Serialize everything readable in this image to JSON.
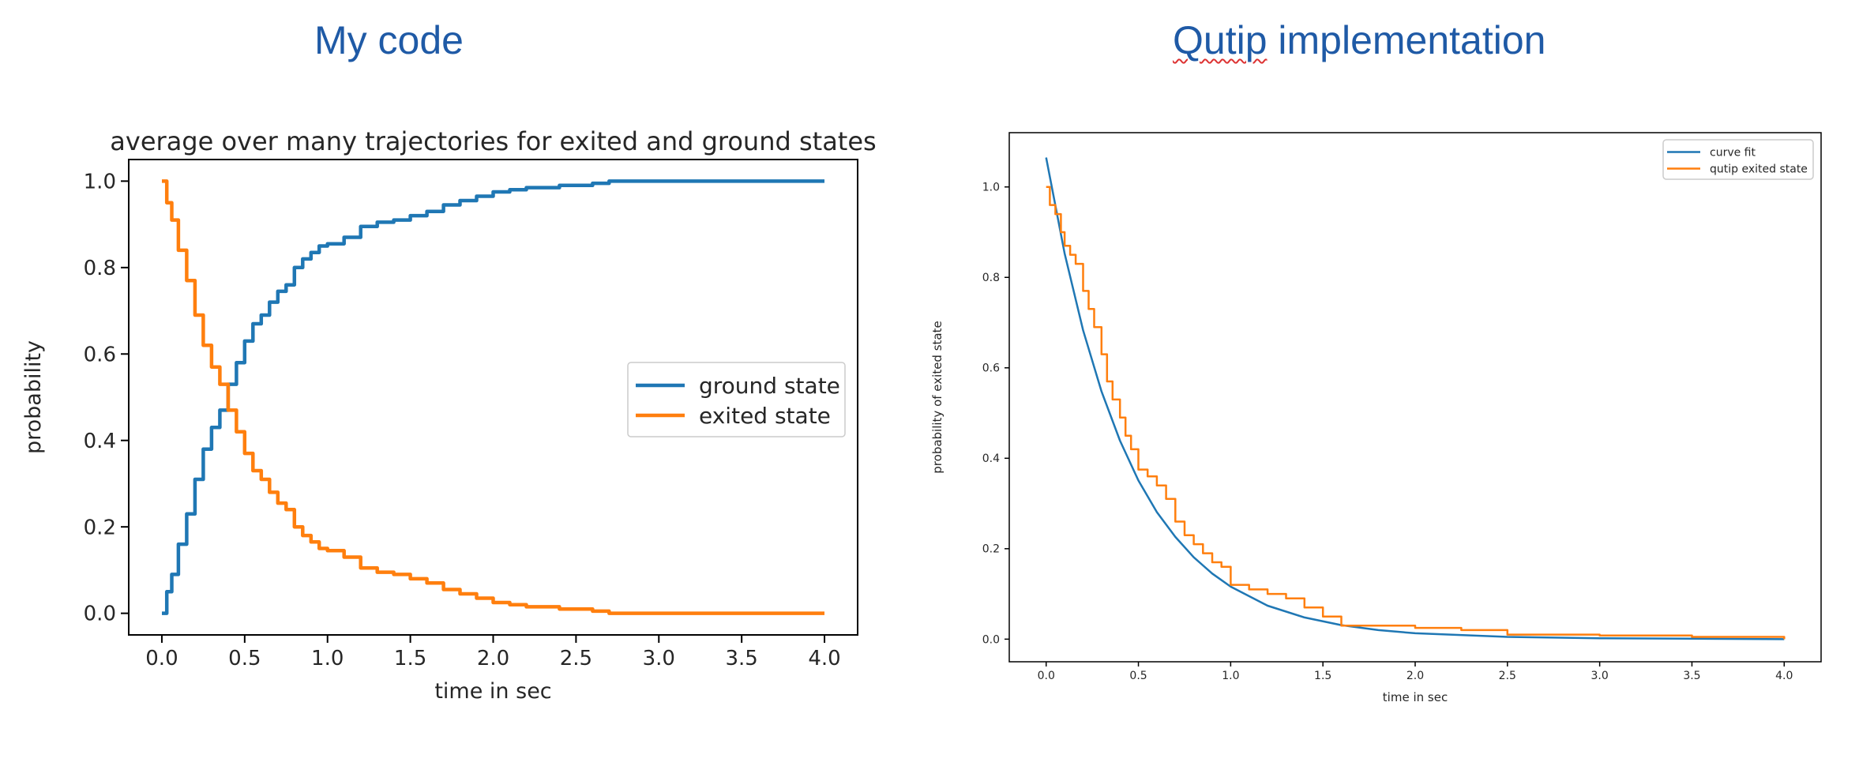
{
  "headings": {
    "left": "My code",
    "right_word1": "Qutip",
    "right_rest": " implementation"
  },
  "colors": {
    "heading": "#1f5aa6",
    "blue": "#1f77b4",
    "orange": "#ff7f0e"
  },
  "chart_data": [
    {
      "type": "line",
      "title": "average over many trajectories for exited and ground states",
      "xlabel": "time in sec",
      "ylabel": "probability",
      "xlim": [
        -0.2,
        4.2
      ],
      "ylim": [
        -0.05,
        1.05
      ],
      "xticks": [
        "0.0",
        "0.5",
        "1.0",
        "1.5",
        "2.0",
        "2.5",
        "3.0",
        "3.5",
        "4.0"
      ],
      "yticks": [
        "0.0",
        "0.2",
        "0.4",
        "0.6",
        "0.8",
        "1.0"
      ],
      "legend_position": "center-right",
      "grid": false,
      "series": [
        {
          "name": "ground state",
          "color": "#1f77b4",
          "step": true,
          "x": [
            0.0,
            0.03,
            0.06,
            0.1,
            0.15,
            0.2,
            0.25,
            0.3,
            0.35,
            0.4,
            0.45,
            0.5,
            0.55,
            0.6,
            0.65,
            0.7,
            0.75,
            0.8,
            0.85,
            0.9,
            0.95,
            1.0,
            1.1,
            1.2,
            1.3,
            1.4,
            1.5,
            1.6,
            1.7,
            1.8,
            1.9,
            2.0,
            2.1,
            2.2,
            2.4,
            2.6,
            2.7,
            3.0,
            3.5,
            4.0
          ],
          "y": [
            0.0,
            0.05,
            0.09,
            0.16,
            0.23,
            0.31,
            0.38,
            0.43,
            0.47,
            0.53,
            0.58,
            0.63,
            0.67,
            0.69,
            0.72,
            0.745,
            0.76,
            0.8,
            0.82,
            0.835,
            0.85,
            0.855,
            0.87,
            0.895,
            0.905,
            0.91,
            0.92,
            0.93,
            0.945,
            0.955,
            0.965,
            0.975,
            0.98,
            0.985,
            0.99,
            0.995,
            1.0,
            1.0,
            1.0,
            1.0
          ]
        },
        {
          "name": "exited state",
          "color": "#ff7f0e",
          "step": true,
          "x": [
            0.0,
            0.03,
            0.06,
            0.1,
            0.15,
            0.2,
            0.25,
            0.3,
            0.35,
            0.4,
            0.45,
            0.5,
            0.55,
            0.6,
            0.65,
            0.7,
            0.75,
            0.8,
            0.85,
            0.9,
            0.95,
            1.0,
            1.1,
            1.2,
            1.3,
            1.4,
            1.5,
            1.6,
            1.7,
            1.8,
            1.9,
            2.0,
            2.1,
            2.2,
            2.4,
            2.6,
            2.7,
            3.0,
            3.5,
            4.0
          ],
          "y": [
            1.0,
            0.95,
            0.91,
            0.84,
            0.77,
            0.69,
            0.62,
            0.57,
            0.53,
            0.47,
            0.42,
            0.37,
            0.33,
            0.31,
            0.28,
            0.255,
            0.24,
            0.2,
            0.18,
            0.165,
            0.15,
            0.145,
            0.13,
            0.105,
            0.095,
            0.09,
            0.08,
            0.07,
            0.055,
            0.045,
            0.035,
            0.025,
            0.02,
            0.015,
            0.01,
            0.005,
            0.0,
            0.0,
            0.0,
            0.0
          ]
        }
      ]
    },
    {
      "type": "line",
      "title": "",
      "xlabel": "time in sec",
      "ylabel": "probability of exited state",
      "xlim": [
        -0.2,
        4.2
      ],
      "ylim": [
        -0.05,
        1.12
      ],
      "xticks": [
        "0.0",
        "0.5",
        "1.0",
        "1.5",
        "2.0",
        "2.5",
        "3.0",
        "3.5",
        "4.0"
      ],
      "yticks": [
        "0.0",
        "0.2",
        "0.4",
        "0.6",
        "0.8",
        "1.0"
      ],
      "legend_position": "top-right",
      "grid": false,
      "series": [
        {
          "name": "curve fit",
          "color": "#1f77b4",
          "step": false,
          "x": [
            0.0,
            0.1,
            0.2,
            0.3,
            0.4,
            0.5,
            0.6,
            0.7,
            0.8,
            0.9,
            1.0,
            1.2,
            1.4,
            1.6,
            1.8,
            2.0,
            2.5,
            3.0,
            3.5,
            4.0
          ],
          "y": [
            1.065,
            0.853,
            0.683,
            0.548,
            0.439,
            0.351,
            0.281,
            0.226,
            0.181,
            0.145,
            0.116,
            0.074,
            0.048,
            0.031,
            0.02,
            0.013,
            0.005,
            0.002,
            0.001,
            0.0
          ]
        },
        {
          "name": "qutip exited state",
          "color": "#ff7f0e",
          "step": true,
          "x": [
            0.0,
            0.02,
            0.05,
            0.08,
            0.1,
            0.13,
            0.16,
            0.2,
            0.23,
            0.26,
            0.3,
            0.33,
            0.36,
            0.4,
            0.43,
            0.46,
            0.5,
            0.55,
            0.6,
            0.65,
            0.7,
            0.75,
            0.8,
            0.85,
            0.9,
            0.95,
            1.0,
            1.1,
            1.2,
            1.3,
            1.4,
            1.5,
            1.6,
            1.8,
            2.0,
            2.25,
            2.5,
            3.0,
            3.5,
            4.0
          ],
          "y": [
            1.0,
            0.96,
            0.94,
            0.9,
            0.87,
            0.85,
            0.83,
            0.77,
            0.73,
            0.69,
            0.63,
            0.57,
            0.53,
            0.49,
            0.45,
            0.42,
            0.375,
            0.36,
            0.34,
            0.31,
            0.26,
            0.23,
            0.21,
            0.19,
            0.17,
            0.16,
            0.12,
            0.11,
            0.1,
            0.09,
            0.07,
            0.05,
            0.03,
            0.03,
            0.025,
            0.02,
            0.01,
            0.008,
            0.005,
            0.0
          ]
        }
      ]
    }
  ]
}
